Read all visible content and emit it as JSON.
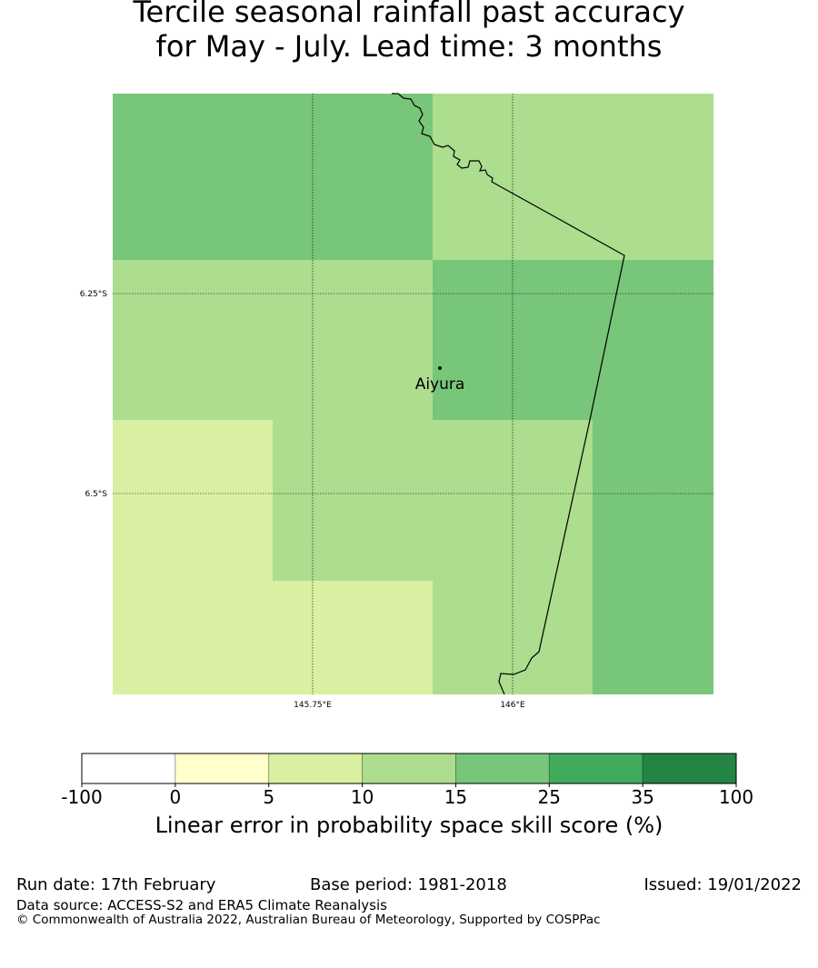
{
  "title_line1": "Tercile seasonal rainfall past accuracy",
  "title_line2": "for May - July. Lead time: 3 months",
  "map": {
    "lat_labels": [
      "6.25°S",
      "6.5°S"
    ],
    "lon_labels": [
      "145.75°E",
      "146°E"
    ],
    "place_name": "Aiyura",
    "grid_cells": [
      {
        "row": 0,
        "col": 0,
        "bin": 4
      },
      {
        "row": 0,
        "col": 1,
        "bin": 4
      },
      {
        "row": 0,
        "col": 2,
        "bin": 3
      },
      {
        "row": 0,
        "col": 3,
        "bin": 3
      },
      {
        "row": 1,
        "col": 0,
        "bin": 3
      },
      {
        "row": 1,
        "col": 1,
        "bin": 3
      },
      {
        "row": 1,
        "col": 2,
        "bin": 4
      },
      {
        "row": 1,
        "col": 3,
        "bin": 4
      },
      {
        "row": 2,
        "col": 0,
        "bin": 2
      },
      {
        "row": 2,
        "col": 1,
        "bin": 3
      },
      {
        "row": 2,
        "col": 2,
        "bin": 3
      },
      {
        "row": 2,
        "col": 3,
        "bin": 4
      },
      {
        "row": 3,
        "col": 0,
        "bin": 2
      },
      {
        "row": 3,
        "col": 1,
        "bin": 2
      },
      {
        "row": 3,
        "col": 2,
        "bin": 3
      },
      {
        "row": 3,
        "col": 3,
        "bin": 4
      }
    ]
  },
  "colorbar": {
    "ticks": [
      "-100",
      "0",
      "5",
      "10",
      "15",
      "25",
      "35",
      "100"
    ],
    "colors": [
      "#ffffff",
      "#ffffcc",
      "#d9f0a3",
      "#addd8e",
      "#78c679",
      "#41ab5d",
      "#238443"
    ],
    "label": "Linear error in probability space skill score (%)"
  },
  "footer": {
    "run_date": "Run date: 17th February",
    "base_period": "Base period: 1981-2018",
    "issued": "Issued: 19/01/2022",
    "data_source": "Data source: ACCESS-S2 and ERA5 Climate Reanalysis",
    "copyright": "© Commonwealth of Australia 2022, Australian Bureau of Meteorology, Supported by COSPPac"
  }
}
